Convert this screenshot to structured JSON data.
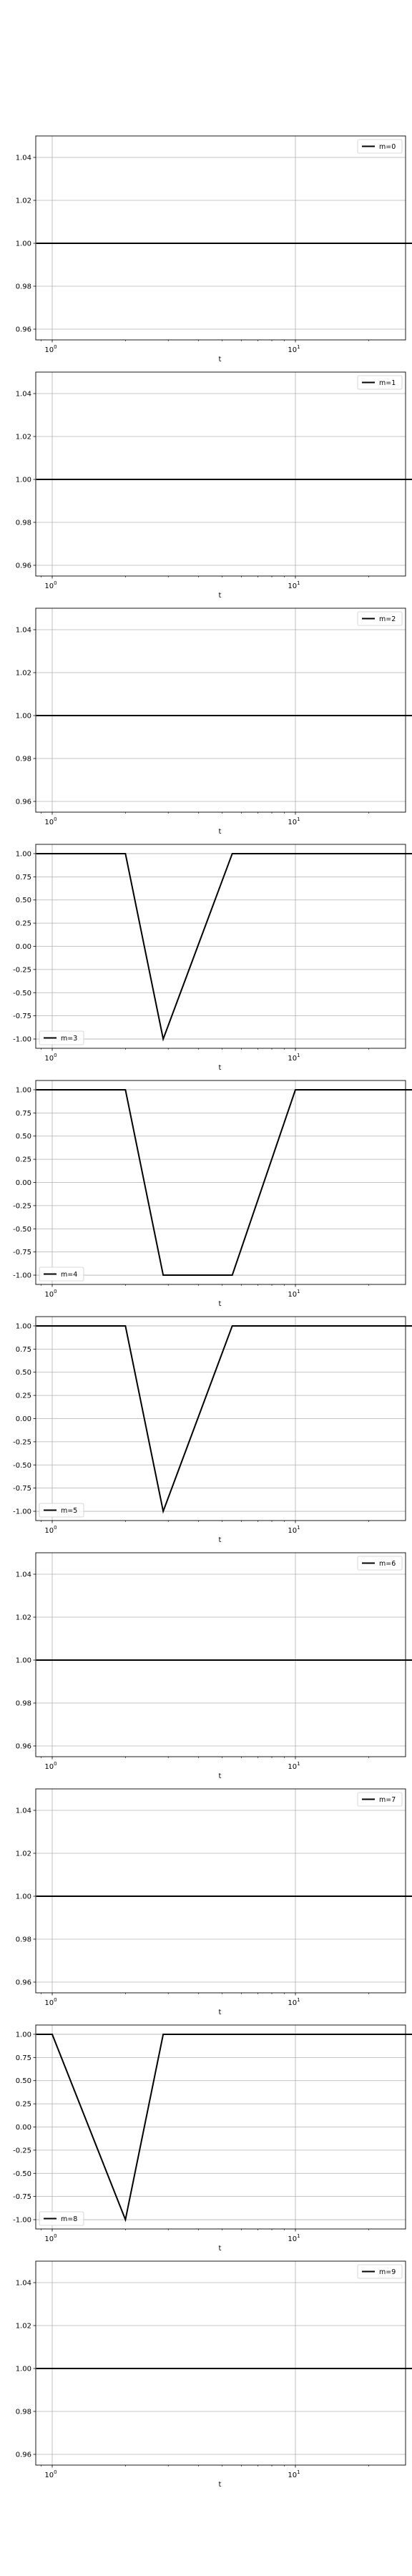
{
  "chart_data": [
    {
      "type": "line",
      "series": [
        {
          "name": "m=0",
          "x": [
            0.86,
            1.5,
            2,
            2.86,
            5.5,
            10,
            13.3,
            23.5,
            23.6,
            200,
            260
          ],
          "values": [
            1,
            1,
            1,
            1,
            1,
            1,
            1,
            1,
            1,
            1,
            1
          ]
        }
      ],
      "xlabel": "t",
      "xscale": "log",
      "xticks": [
        [
          "10",
          "0"
        ],
        [
          "10",
          "1"
        ]
      ],
      "ylim": [
        0.955,
        1.05
      ],
      "yticks": [
        "0.96",
        "0.98",
        "1.00",
        "1.02",
        "1.04"
      ],
      "legend": "upper right",
      "grid": true
    },
    {
      "type": "line",
      "series": [
        {
          "name": "m=1",
          "x": [
            0.86,
            1.5,
            2,
            2.86,
            5.5,
            10,
            13.3,
            23.5,
            23.6,
            200,
            260
          ],
          "values": [
            1,
            1,
            1,
            1,
            1,
            1,
            1,
            1,
            1,
            1,
            1
          ]
        }
      ],
      "xlabel": "t",
      "xscale": "log",
      "xticks": [
        [
          "10",
          "0"
        ],
        [
          "10",
          "1"
        ]
      ],
      "ylim": [
        0.955,
        1.05
      ],
      "yticks": [
        "0.96",
        "0.98",
        "1.00",
        "1.02",
        "1.04"
      ],
      "legend": "upper right",
      "grid": true
    },
    {
      "type": "line",
      "series": [
        {
          "name": "m=2",
          "x": [
            0.86,
            1.5,
            2,
            2.86,
            5.5,
            10,
            13.3,
            23.5,
            23.6,
            200,
            260
          ],
          "values": [
            1,
            1,
            1,
            1,
            1,
            1,
            1,
            1,
            1,
            1,
            1
          ]
        }
      ],
      "xlabel": "t",
      "xscale": "log",
      "xticks": [
        [
          "10",
          "0"
        ],
        [
          "10",
          "1"
        ]
      ],
      "ylim": [
        0.955,
        1.05
      ],
      "yticks": [
        "0.96",
        "0.98",
        "1.00",
        "1.02",
        "1.04"
      ],
      "legend": "upper right",
      "grid": true
    },
    {
      "type": "line",
      "series": [
        {
          "name": "m=3",
          "x": [
            0.86,
            1.5,
            2,
            2.86,
            5.5,
            10,
            13.3,
            23.5,
            23.6,
            200,
            260
          ],
          "values": [
            1,
            1,
            1,
            -1,
            1,
            1,
            1,
            1,
            1,
            1,
            1
          ]
        }
      ],
      "xlabel": "t",
      "xscale": "log",
      "xticks": [
        [
          "10",
          "0"
        ],
        [
          "10",
          "1"
        ]
      ],
      "ylim": [
        -1.1,
        1.1
      ],
      "yticks": [
        "-1.00",
        "-0.75",
        "-0.50",
        "-0.25",
        "0.00",
        "0.25",
        "0.50",
        "0.75",
        "1.00"
      ],
      "legend": "lower left",
      "grid": true
    },
    {
      "type": "line",
      "series": [
        {
          "name": "m=4",
          "x": [
            0.86,
            1.5,
            2,
            2.86,
            5.5,
            10,
            13.3,
            23.5,
            23.6,
            200,
            260
          ],
          "values": [
            1,
            1,
            1,
            -1,
            -1,
            1,
            1,
            1,
            1,
            1,
            1
          ]
        }
      ],
      "xlabel": "t",
      "xscale": "log",
      "xticks": [
        [
          "10",
          "0"
        ],
        [
          "10",
          "1"
        ]
      ],
      "ylim": [
        -1.1,
        1.1
      ],
      "yticks": [
        "-1.00",
        "-0.75",
        "-0.50",
        "-0.25",
        "0.00",
        "0.25",
        "0.50",
        "0.75",
        "1.00"
      ],
      "legend": "lower left",
      "grid": true
    },
    {
      "type": "line",
      "series": [
        {
          "name": "m=5",
          "x": [
            0.86,
            1.5,
            2,
            2.86,
            5.5,
            10,
            13.3,
            23.5,
            23.6,
            200,
            260
          ],
          "values": [
            1,
            1,
            1,
            -1,
            1,
            1,
            1,
            1,
            1,
            1,
            1
          ]
        }
      ],
      "xlabel": "t",
      "xscale": "log",
      "xticks": [
        [
          "10",
          "0"
        ],
        [
          "10",
          "1"
        ]
      ],
      "ylim": [
        -1.1,
        1.1
      ],
      "yticks": [
        "-1.00",
        "-0.75",
        "-0.50",
        "-0.25",
        "0.00",
        "0.25",
        "0.50",
        "0.75",
        "1.00"
      ],
      "legend": "lower left",
      "grid": true
    },
    {
      "type": "line",
      "series": [
        {
          "name": "m=6",
          "x": [
            0.86,
            1.5,
            2,
            2.86,
            5.5,
            10,
            13.3,
            23.5,
            23.6,
            200,
            260
          ],
          "values": [
            1,
            1,
            1,
            1,
            1,
            1,
            1,
            1,
            1,
            1,
            1
          ]
        }
      ],
      "xlabel": "t",
      "xscale": "log",
      "xticks": [
        [
          "10",
          "0"
        ],
        [
          "10",
          "1"
        ]
      ],
      "ylim": [
        0.955,
        1.05
      ],
      "yticks": [
        "0.96",
        "0.98",
        "1.00",
        "1.02",
        "1.04"
      ],
      "legend": "upper right",
      "grid": true
    },
    {
      "type": "line",
      "series": [
        {
          "name": "m=7",
          "x": [
            0.86,
            1.5,
            2,
            2.86,
            5.5,
            10,
            13.3,
            23.5,
            23.6,
            200,
            260
          ],
          "values": [
            1,
            1,
            1,
            1,
            1,
            1,
            1,
            1,
            1,
            1,
            1
          ]
        }
      ],
      "xlabel": "t",
      "xscale": "log",
      "xticks": [
        [
          "10",
          "0"
        ],
        [
          "10",
          "1"
        ]
      ],
      "ylim": [
        0.955,
        1.05
      ],
      "yticks": [
        "0.96",
        "0.98",
        "1.00",
        "1.02",
        "1.04"
      ],
      "legend": "upper right",
      "grid": true
    },
    {
      "type": "line",
      "series": [
        {
          "name": "m=8",
          "x": [
            0.86,
            1,
            2,
            2.86,
            5.5,
            10,
            13.3,
            23.5,
            23.6,
            200,
            260
          ],
          "values": [
            1,
            1,
            -1,
            1,
            1,
            1,
            1,
            1,
            1,
            1,
            1
          ]
        }
      ],
      "xlabel": "t",
      "xscale": "log",
      "xticks": [
        [
          "10",
          "0"
        ],
        [
          "10",
          "1"
        ]
      ],
      "ylim": [
        -1.1,
        1.1
      ],
      "yticks": [
        "-1.00",
        "-0.75",
        "-0.50",
        "-0.25",
        "0.00",
        "0.25",
        "0.50",
        "0.75",
        "1.00"
      ],
      "legend": "lower left",
      "grid": true
    },
    {
      "type": "line",
      "series": [
        {
          "name": "m=9",
          "x": [
            0.86,
            1.5,
            2,
            2.86,
            5.5,
            10,
            13.3,
            23.5,
            23.6,
            200,
            260
          ],
          "values": [
            1,
            1,
            1,
            1,
            1,
            1,
            1,
            1,
            1,
            1,
            1
          ]
        }
      ],
      "xlabel": "t",
      "xscale": "log",
      "xticks": [
        [
          "10",
          "0"
        ],
        [
          "10",
          "1"
        ]
      ],
      "ylim": [
        0.955,
        1.05
      ],
      "yticks": [
        "0.96",
        "0.98",
        "1.00",
        "1.02",
        "1.04"
      ],
      "legend": "upper right",
      "grid": true
    }
  ],
  "colors": {
    "line": "#000000",
    "grid": "#b0b0b0",
    "frame": "#000000",
    "legend_border": "#cccccc"
  }
}
